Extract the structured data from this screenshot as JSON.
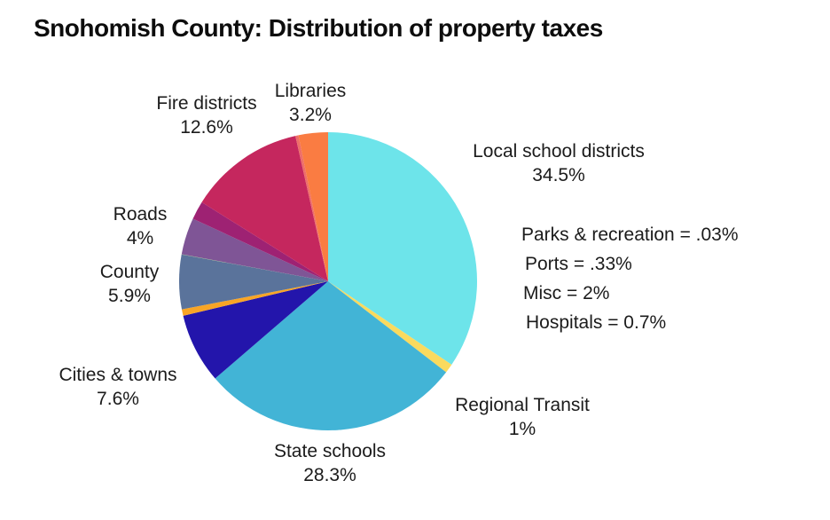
{
  "title": "Snohomish County: Distribution of property taxes",
  "chart_data": {
    "type": "pie",
    "title": "Snohomish County: Distribution of property taxes",
    "start_angle_deg": 0,
    "direction": "clockwise",
    "legend": "none",
    "slices": [
      {
        "label": "Local school districts",
        "value": 34.5,
        "display": "34.5%",
        "color": "#6de4ea"
      },
      {
        "label": "Regional Transit",
        "value": 1,
        "display": "1%",
        "color": "#fada5e"
      },
      {
        "label": "State schools",
        "value": 28.3,
        "display": "28.3%",
        "color": "#42b4d6"
      },
      {
        "label": "Cities & towns",
        "value": 7.6,
        "display": "7.6%",
        "color": "#2315ab"
      },
      {
        "label": "Hospitals",
        "value": 0.7,
        "display": "0.7%",
        "color": "#f8a526"
      },
      {
        "label": "County",
        "value": 5.9,
        "display": "5.9%",
        "color": "#5a739b"
      },
      {
        "label": "Parks & recreation",
        "value": 0.03,
        "display": ".03%",
        "color": "#9ccc65"
      },
      {
        "label": "Roads",
        "value": 4,
        "display": "4%",
        "color": "#7f5596"
      },
      {
        "label": "Misc",
        "value": 2,
        "display": "2%",
        "color": "#9e2273"
      },
      {
        "label": "Fire districts",
        "value": 12.6,
        "display": "12.6%",
        "color": "#c5275e"
      },
      {
        "label": "Ports",
        "value": 0.33,
        "display": ".33%",
        "color": "#ee6e69"
      },
      {
        "label": "Libraries",
        "value": 3.2,
        "display": "3.2%",
        "color": "#fa7c42"
      }
    ]
  },
  "side_notes": [
    "Parks & recreation =  .03%",
    "Ports =  .33%",
    "Misc =  2%",
    "Hospitals = 0.7%"
  ]
}
